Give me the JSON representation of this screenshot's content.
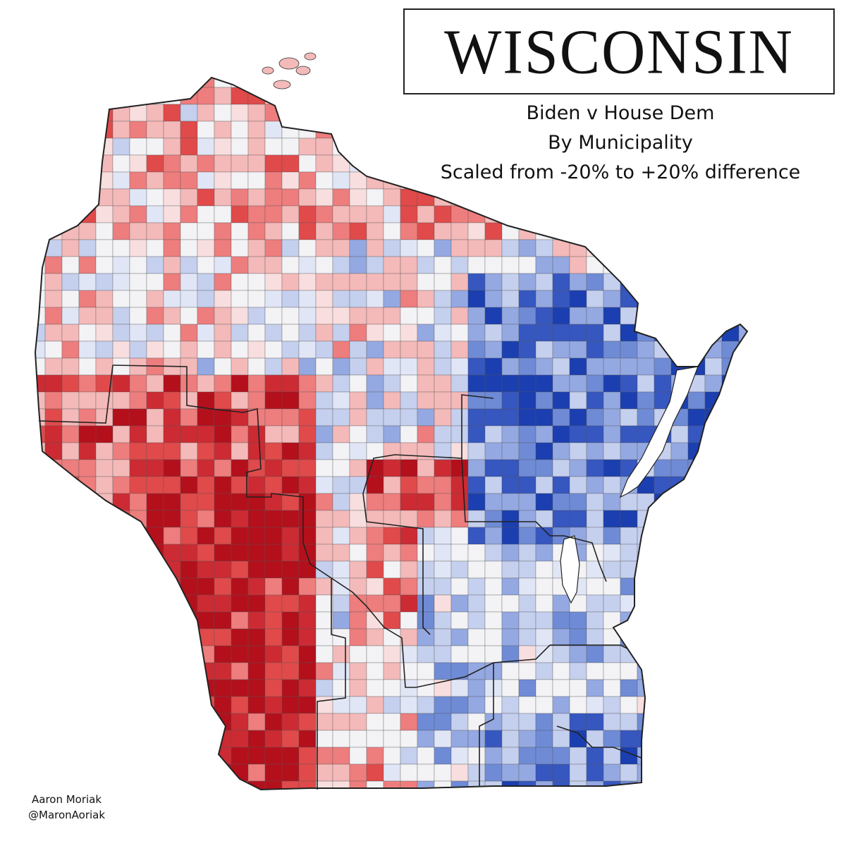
{
  "title": "WISCONSIN",
  "subtitle": {
    "line1": "Biden v House Dem",
    "line2": "By Municipality",
    "line3": "Scaled from -20% to +20% difference"
  },
  "credit": {
    "author": "Aaron Moriak",
    "handle": "@MaronAoriak"
  },
  "map": {
    "region": "Wisconsin",
    "unit": "municipality",
    "metric": "Biden vote share minus House Democratic vote share",
    "scale_min_pct": -20,
    "scale_max_pct": 20,
    "colors": {
      "strong_red": "#b3101c",
      "mid_red": "#e04a4a",
      "light_red": "#f4b9b9",
      "neutral": "#f3f3f6",
      "light_blue": "#c5cfee",
      "mid_blue": "#6f8bd6",
      "strong_blue": "#1b3fb0",
      "border": "#333333"
    },
    "pattern": {
      "northwest": "mostly light red",
      "southwest": "strong red",
      "central": "mixed",
      "northeast": "strong blue",
      "east_southeast": "light to mid blue"
    }
  }
}
